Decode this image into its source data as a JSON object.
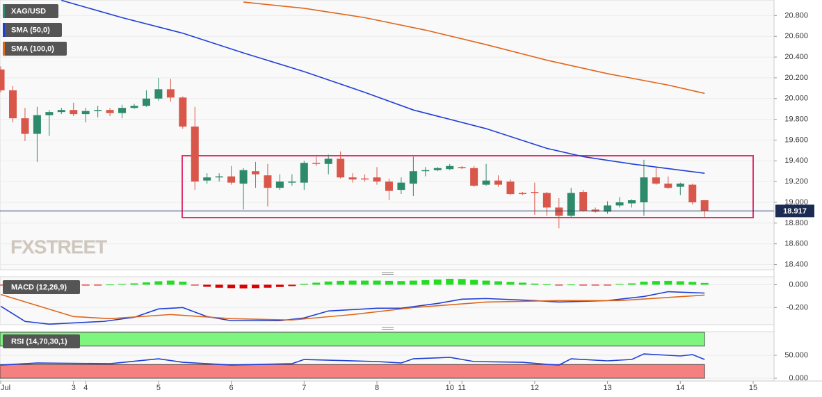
{
  "chart_data": [
    {
      "type": "candlestick",
      "name": "XAG/USD",
      "color_up": "#2d8a6a",
      "color_down": "#d9574a",
      "x": [
        0,
        1,
        2,
        3,
        4,
        5,
        6,
        7,
        8,
        9,
        10,
        11,
        12,
        13,
        14,
        15,
        16,
        17,
        18,
        19,
        20,
        21,
        22,
        23,
        24,
        25,
        26,
        27,
        28,
        29,
        30,
        31,
        32,
        33,
        34,
        35,
        36,
        37,
        38,
        39,
        40,
        41,
        42,
        43,
        44,
        45,
        46,
        47,
        48,
        49,
        50,
        51,
        52,
        53,
        54,
        55,
        56,
        57,
        58
      ],
      "open": [
        20.28,
        20.08,
        19.81,
        19.66,
        19.84,
        19.87,
        19.89,
        19.85,
        19.88,
        19.89,
        19.86,
        19.91,
        19.93,
        20.0,
        20.09,
        20.01,
        19.73,
        19.21,
        19.24,
        19.25,
        19.18,
        19.3,
        19.26,
        19.14,
        19.19,
        19.19,
        19.38,
        19.37,
        19.42,
        19.24,
        19.23,
        19.24,
        19.2,
        19.12,
        19.18,
        19.3,
        19.31,
        19.32,
        19.34,
        19.33,
        19.17,
        19.21,
        19.2,
        19.09,
        19.1,
        19.09,
        18.95,
        18.87,
        19.1,
        18.93,
        18.91,
        18.97,
        18.99,
        19.0,
        19.24,
        19.18,
        19.15,
        19.17,
        19.02
      ],
      "high": [
        20.31,
        20.12,
        19.91,
        19.92,
        19.89,
        19.91,
        19.96,
        19.91,
        19.93,
        19.91,
        19.94,
        19.95,
        20.08,
        20.2,
        20.19,
        20.02,
        19.92,
        19.28,
        19.28,
        19.35,
        19.33,
        19.39,
        19.37,
        19.27,
        19.27,
        19.4,
        19.44,
        19.46,
        19.49,
        19.28,
        19.27,
        19.34,
        19.23,
        19.24,
        19.44,
        19.34,
        19.34,
        19.37,
        19.35,
        19.35,
        19.37,
        19.26,
        19.22,
        19.1,
        19.19,
        19.1,
        19.04,
        19.14,
        19.12,
        18.95,
        19.01,
        19.05,
        19.03,
        19.41,
        19.34,
        19.25,
        19.19,
        19.18,
        19.02
      ],
      "low": [
        20.06,
        19.77,
        19.59,
        19.39,
        19.64,
        19.85,
        19.83,
        19.77,
        19.82,
        19.83,
        19.81,
        19.9,
        19.92,
        19.98,
        19.97,
        19.71,
        19.12,
        19.18,
        19.2,
        19.17,
        18.93,
        19.14,
        18.96,
        19.12,
        19.16,
        19.12,
        19.35,
        19.27,
        19.23,
        19.19,
        19.2,
        19.17,
        19.02,
        19.08,
        19.06,
        19.25,
        19.3,
        19.31,
        19.32,
        19.15,
        19.16,
        19.15,
        19.07,
        19.07,
        18.88,
        18.87,
        18.75,
        18.86,
        18.91,
        18.9,
        18.89,
        18.95,
        18.95,
        18.87,
        19.17,
        19.13,
        19.07,
        18.98,
        18.86
      ],
      "close": [
        20.08,
        19.81,
        19.66,
        19.84,
        19.87,
        19.89,
        19.85,
        19.88,
        19.89,
        19.86,
        19.91,
        19.93,
        20.0,
        20.09,
        20.01,
        19.73,
        19.2,
        19.24,
        19.25,
        19.19,
        19.31,
        19.27,
        19.14,
        19.2,
        19.2,
        19.38,
        19.37,
        19.42,
        19.24,
        19.22,
        19.22,
        19.2,
        19.11,
        19.19,
        19.3,
        19.31,
        19.33,
        19.35,
        19.33,
        19.16,
        19.21,
        19.17,
        19.08,
        19.08,
        19.09,
        18.95,
        18.87,
        19.09,
        18.92,
        18.91,
        18.97,
        19.0,
        19.02,
        19.24,
        19.18,
        19.14,
        19.18,
        19.0,
        18.92
      ],
      "series": [
        {
          "name": "SMA (50,0)",
          "color": "#1f3fd6",
          "x": [
            5,
            10,
            15,
            20,
            25,
            30,
            34,
            40,
            45,
            48,
            52,
            58
          ],
          "values": [
            20.947,
            20.78,
            20.63,
            20.44,
            20.26,
            20.06,
            19.89,
            19.71,
            19.52,
            19.44,
            19.37,
            19.28
          ]
        },
        {
          "name": "SMA (100,0)",
          "color": "#e0661a",
          "x": [
            20,
            25,
            30,
            35,
            40,
            45,
            50,
            55,
            58
          ],
          "values": [
            20.93,
            20.87,
            20.78,
            20.66,
            20.52,
            20.37,
            20.24,
            20.13,
            20.05
          ]
        }
      ],
      "last_price": 18.917,
      "watermark": "FXSTREET",
      "grid": true,
      "xlim": [
        -0.06,
        63.72
      ],
      "ylim": [
        18.35,
        20.95
      ],
      "yticks": [
        {
          "value": 20.8,
          "label": "20.800"
        },
        {
          "value": 20.6,
          "label": "20.600"
        },
        {
          "value": 20.4,
          "label": "20.400"
        },
        {
          "value": 20.2,
          "label": "20.200"
        },
        {
          "value": 20.0,
          "label": "20.000"
        },
        {
          "value": 19.8,
          "label": "19.800"
        },
        {
          "value": 19.6,
          "label": "19.600"
        },
        {
          "value": 19.4,
          "label": "19.400"
        },
        {
          "value": 19.2,
          "label": "19.200"
        },
        {
          "value": 19.0,
          "label": "19.000"
        },
        {
          "value": 18.8,
          "label": "18.800"
        },
        {
          "value": 18.6,
          "label": "18.600"
        },
        {
          "value": 18.4,
          "label": "18.400"
        }
      ]
    },
    {
      "type": "macd",
      "name": "MACD (12,26,9)",
      "positive_color": "#22dd22",
      "negative_color": "#dd0000",
      "x": [
        0,
        1,
        2,
        3,
        4,
        5,
        6,
        7,
        8,
        9,
        10,
        11,
        12,
        13,
        14,
        15,
        16,
        17,
        18,
        19,
        20,
        21,
        22,
        23,
        24,
        25,
        26,
        27,
        28,
        29,
        30,
        31,
        32,
        33,
        34,
        35,
        36,
        37,
        38,
        39,
        40,
        41,
        42,
        43,
        44,
        45,
        46,
        47,
        48,
        49,
        50,
        51,
        52,
        53,
        54,
        55,
        56,
        57,
        58
      ],
      "histogram": [
        -0.005,
        -0.008,
        -0.01,
        -0.01,
        -0.008,
        -0.006,
        -0.005,
        -0.004,
        -0.002,
        0.002,
        0.006,
        0.012,
        0.02,
        0.03,
        0.036,
        0.026,
        -0.005,
        -0.018,
        -0.026,
        -0.03,
        -0.032,
        -0.03,
        -0.026,
        -0.02,
        -0.012,
        0.008,
        0.018,
        0.028,
        0.034,
        0.036,
        0.036,
        0.036,
        0.034,
        0.032,
        0.036,
        0.04,
        0.045,
        0.052,
        0.05,
        0.042,
        0.036,
        0.03,
        0.024,
        0.018,
        0.01,
        0.004,
        -0.004,
        0.002,
        -0.003,
        -0.004,
        -0.002,
        0.006,
        0.012,
        0.026,
        0.032,
        0.034,
        0.03,
        0.024,
        0.016
      ],
      "series": [
        {
          "color": "#1f3fd6",
          "x": [
            0,
            2,
            4,
            8.5,
            11,
            13,
            15,
            17,
            19,
            23,
            25,
            27,
            31,
            33,
            36,
            38,
            40,
            44,
            46,
            50,
            53,
            55,
            58
          ],
          "values": [
            -0.188,
            -0.321,
            -0.345,
            -0.321,
            -0.285,
            -0.212,
            -0.2,
            -0.279,
            -0.315,
            -0.315,
            -0.291,
            -0.23,
            -0.206,
            -0.206,
            -0.164,
            -0.127,
            -0.121,
            -0.139,
            -0.152,
            -0.139,
            -0.103,
            -0.061,
            -0.073
          ]
        },
        {
          "color": "#e0661a",
          "x": [
            0,
            6,
            9,
            14,
            19,
            24,
            29,
            34,
            40,
            46,
            51,
            58
          ],
          "values": [
            -0.085,
            -0.279,
            -0.297,
            -0.261,
            -0.297,
            -0.309,
            -0.261,
            -0.2,
            -0.152,
            -0.139,
            -0.139,
            -0.091
          ]
        }
      ],
      "grid": true,
      "xlim": [
        -0.06,
        63.72
      ],
      "ylim": [
        -0.35,
        0.07
      ],
      "yticks": [
        {
          "value": 0,
          "label": "0.000"
        },
        {
          "value": -0.2,
          "label": "-0.200"
        }
      ]
    },
    {
      "type": "line",
      "name": "RSI (14,70,30,1)",
      "series": [
        {
          "color": "#1f3fd6",
          "x": [
            0,
            3,
            9,
            13,
            15,
            19,
            24,
            25,
            31,
            33,
            34,
            37,
            39,
            43,
            45,
            46,
            47,
            50,
            52,
            53,
            56,
            57,
            58
          ],
          "values": [
            28.8,
            33.3,
            31.8,
            42.4,
            34.8,
            28.8,
            31.8,
            40.9,
            36.4,
            33.3,
            42.4,
            45.5,
            36.4,
            34.8,
            30.3,
            28.8,
            42.4,
            37.9,
            40.9,
            53.0,
            48.5,
            51.5,
            40.9
          ]
        }
      ],
      "bands": [
        {
          "from": 70,
          "to": 100,
          "color": "#7ef57e"
        },
        {
          "from": 0,
          "to": 30,
          "color": "#f58080"
        }
      ],
      "grid": true,
      "xlim": [
        -0.06,
        63.72
      ],
      "ylim": [
        -6,
        101.5
      ],
      "yticks": [
        {
          "value": 50,
          "label": "50.000"
        },
        {
          "value": 0,
          "label": "0.000"
        }
      ],
      "xticks": [
        {
          "value": 0,
          "label": "Jul"
        },
        {
          "value": 6,
          "label": "3"
        },
        {
          "value": 7,
          "label": "4"
        },
        {
          "value": 13,
          "label": "5"
        },
        {
          "value": 19,
          "label": "6"
        },
        {
          "value": 25,
          "label": "7"
        },
        {
          "value": 31,
          "label": "8"
        },
        {
          "value": 37,
          "label": "10"
        },
        {
          "value": 38,
          "label": "11"
        },
        {
          "value": 44,
          "label": "12"
        },
        {
          "value": 50,
          "label": "13"
        },
        {
          "value": 56,
          "label": "14"
        },
        {
          "value": 62,
          "label": "15"
        }
      ]
    }
  ]
}
